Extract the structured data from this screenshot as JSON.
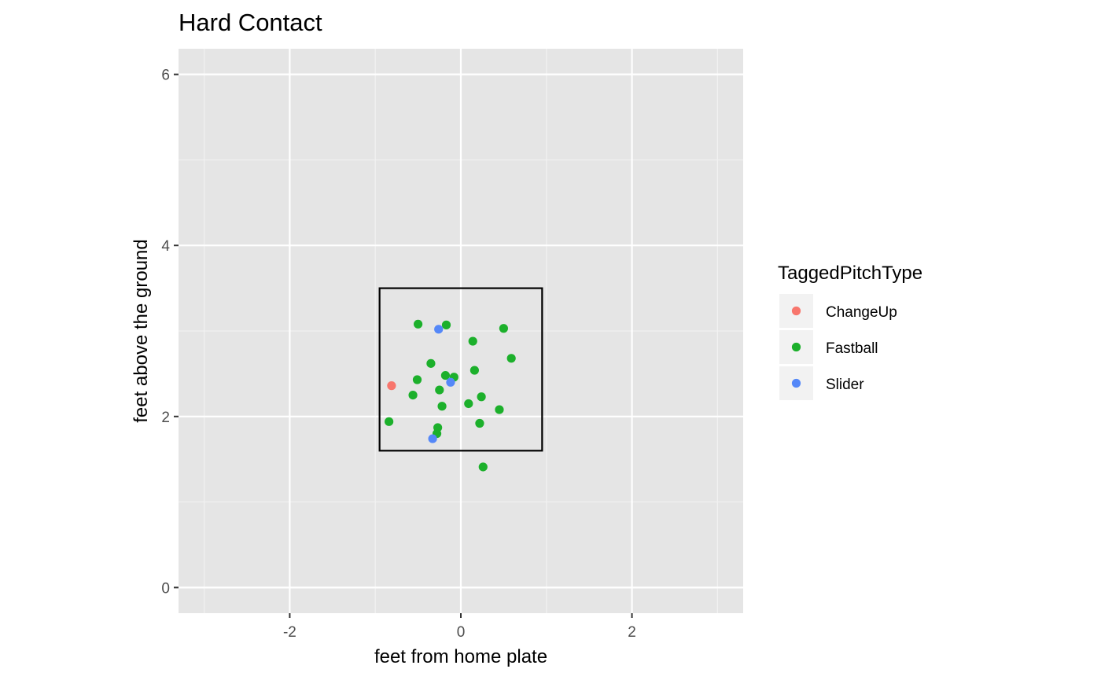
{
  "chart_data": {
    "type": "scatter",
    "title": "Hard Contact",
    "xlabel": "feet from home plate",
    "ylabel": "feet above the ground",
    "xlim": [
      -3.3,
      3.3
    ],
    "ylim": [
      -0.3,
      6.3
    ],
    "x_ticks": [
      -2,
      0,
      2
    ],
    "x_tick_labels": [
      "-2",
      "0",
      "2"
    ],
    "y_ticks": [
      0,
      2,
      4,
      6
    ],
    "y_tick_labels": [
      "0",
      "2",
      "4",
      "6"
    ],
    "grid": true,
    "legend": {
      "title": "TaggedPitchType",
      "position": "right"
    },
    "strike_zone": {
      "x": [
        -0.95,
        0.95
      ],
      "y": [
        1.6,
        3.5
      ]
    },
    "series": [
      {
        "name": "ChangeUp",
        "color": "#F8766D",
        "points": [
          [
            -0.81,
            2.36
          ]
        ]
      },
      {
        "name": "Fastball",
        "color": "#1CB02B",
        "points": [
          [
            -0.5,
            3.08
          ],
          [
            -0.17,
            3.07
          ],
          [
            0.5,
            3.03
          ],
          [
            0.14,
            2.88
          ],
          [
            0.59,
            2.68
          ],
          [
            -0.35,
            2.62
          ],
          [
            0.16,
            2.54
          ],
          [
            -0.18,
            2.48
          ],
          [
            -0.08,
            2.46
          ],
          [
            -0.51,
            2.43
          ],
          [
            -0.25,
            2.31
          ],
          [
            -0.56,
            2.25
          ],
          [
            0.24,
            2.23
          ],
          [
            0.09,
            2.15
          ],
          [
            -0.22,
            2.12
          ],
          [
            0.45,
            2.08
          ],
          [
            -0.84,
            1.94
          ],
          [
            0.22,
            1.92
          ],
          [
            -0.27,
            1.87
          ],
          [
            -0.28,
            1.8
          ],
          [
            0.26,
            1.41
          ]
        ]
      },
      {
        "name": "Slider",
        "color": "#5588F8",
        "points": [
          [
            -0.26,
            3.02
          ],
          [
            -0.12,
            2.4
          ],
          [
            -0.33,
            1.74
          ]
        ]
      }
    ]
  }
}
